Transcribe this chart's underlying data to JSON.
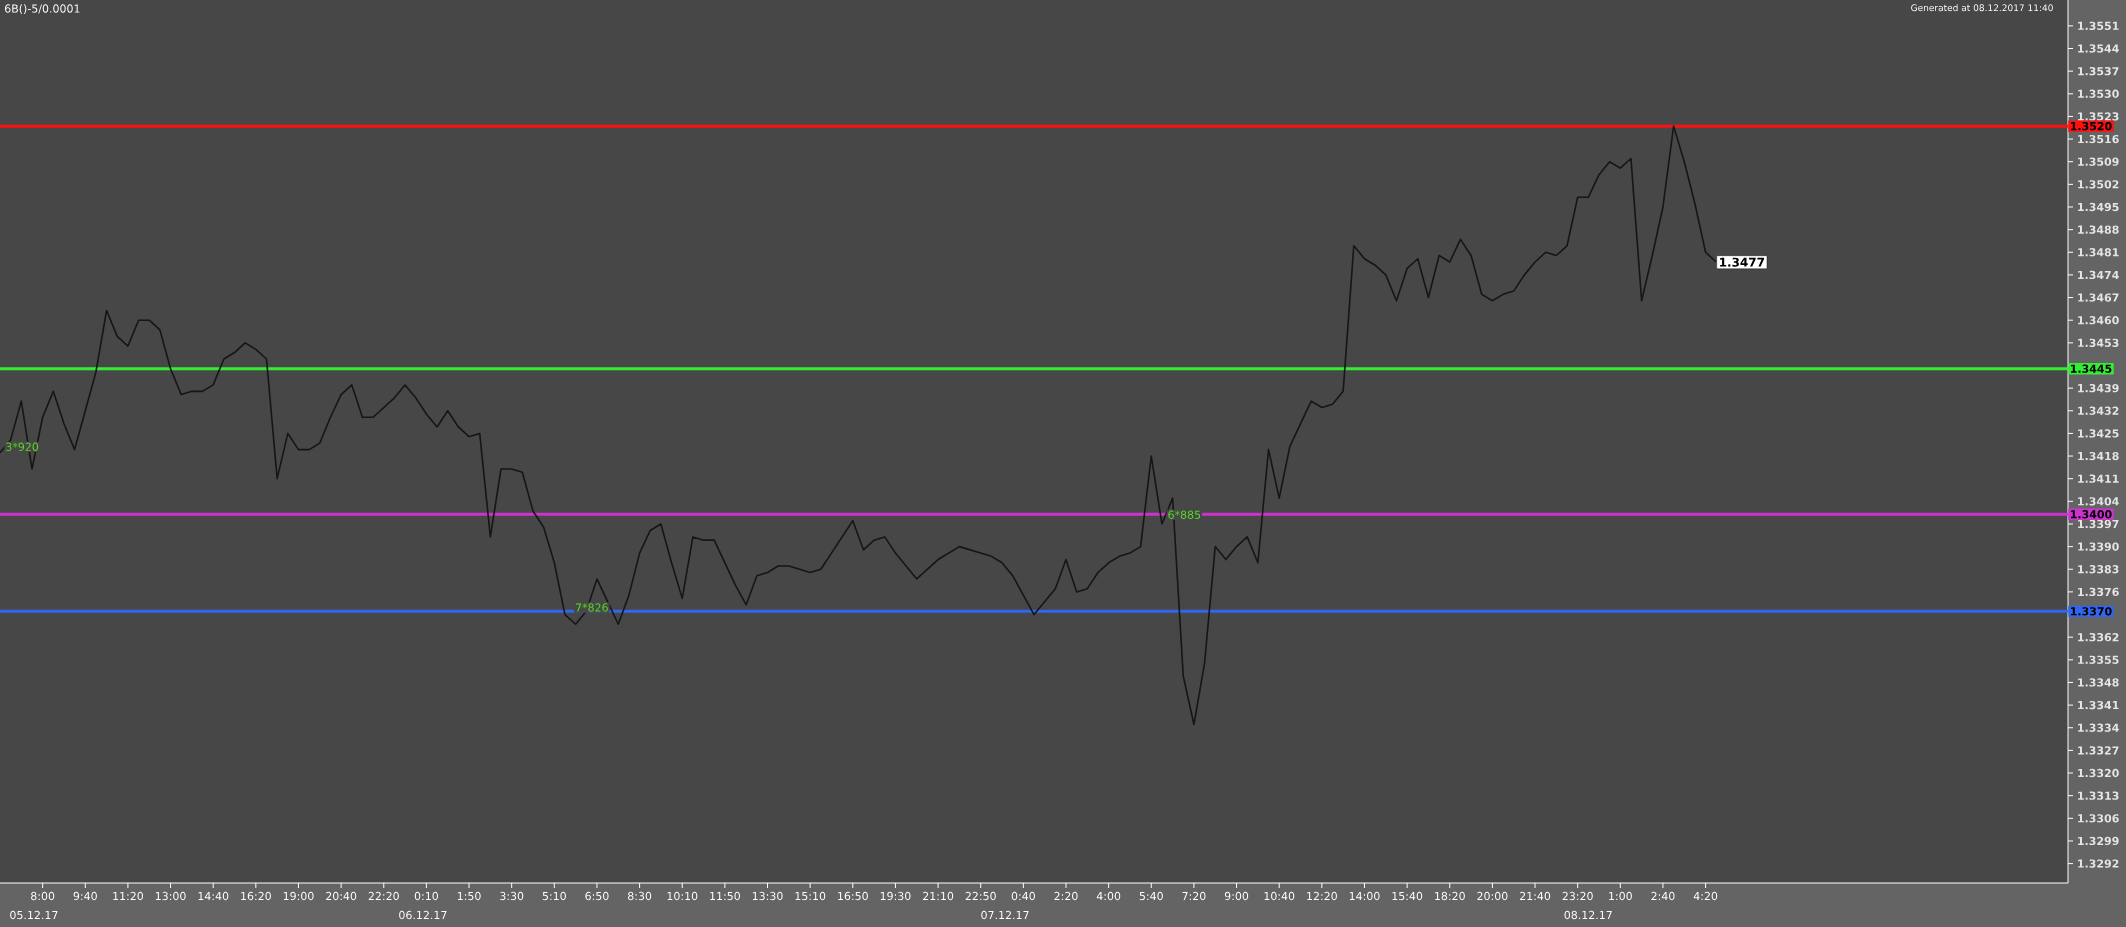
{
  "chart_data": {
    "type": "line",
    "title": "6B()-5/0.0001",
    "subtitle": "Generated at 08.12.2017 11:40",
    "categories": [
      null,
      null,
      null,
      null,
      "8:00",
      null,
      null,
      null,
      "9:40",
      null,
      null,
      null,
      "11:20",
      null,
      null,
      null,
      "13:00",
      null,
      null,
      null,
      "14:40",
      null,
      null,
      null,
      "16:20",
      null,
      null,
      null,
      "19:00",
      null,
      null,
      null,
      "20:40",
      null,
      null,
      null,
      "22:20",
      null,
      null,
      null,
      "0:10",
      null,
      null,
      null,
      "1:50",
      null,
      null,
      null,
      "3:30",
      null,
      null,
      null,
      "5:10",
      null,
      null,
      null,
      "6:50",
      null,
      null,
      null,
      "8:30",
      null,
      null,
      null,
      "10:10",
      null,
      null,
      null,
      "11:50",
      null,
      null,
      null,
      "13:30",
      null,
      null,
      null,
      "15:10",
      null,
      null,
      null,
      "16:50",
      null,
      null,
      null,
      "19:30",
      null,
      null,
      null,
      "21:10",
      null,
      null,
      null,
      "22:50",
      null,
      null,
      null,
      "0:40",
      null,
      null,
      null,
      "2:20",
      null,
      null,
      null,
      "4:00",
      null,
      null,
      null,
      "5:40",
      null,
      null,
      null,
      "7:20",
      null,
      null,
      null,
      "9:00",
      null,
      null,
      null,
      "10:40",
      null,
      null,
      null,
      "12:20",
      null,
      null,
      null,
      "14:00",
      null,
      null,
      null,
      "15:40",
      null,
      null,
      null,
      "18:20",
      null,
      null,
      null,
      "20:00",
      null,
      null,
      null,
      "21:40",
      null,
      null,
      null,
      "23:20",
      null,
      null,
      null,
      "1:00",
      null,
      null,
      null,
      "2:40",
      null,
      null,
      null,
      "4:20",
      null,
      null,
      null,
      null,
      null,
      null,
      null,
      null,
      null,
      null,
      null,
      null,
      null,
      null,
      null,
      null,
      null,
      null,
      null,
      null,
      null,
      null,
      null,
      null,
      null,
      null,
      null,
      null,
      null,
      null,
      null,
      null,
      null,
      null
    ],
    "series": [
      {
        "color": "#161616",
        "values": [
          1.3419,
          1.3423,
          1.3435,
          1.3414,
          1.343,
          1.3438,
          1.3428,
          1.342,
          1.3432,
          1.3444,
          1.3463,
          1.3455,
          1.3452,
          1.346,
          1.346,
          1.3457,
          1.3445,
          1.3437,
          1.3438,
          1.3438,
          1.344,
          1.3448,
          1.345,
          1.3453,
          1.3451,
          1.3448,
          1.3411,
          1.3425,
          1.342,
          1.342,
          1.3422,
          1.343,
          1.3437,
          1.344,
          1.343,
          1.343,
          1.3433,
          1.3436,
          1.344,
          1.3436,
          1.3431,
          1.3427,
          1.3432,
          1.3427,
          1.3424,
          1.3425,
          1.3393,
          1.3414,
          1.3414,
          1.3413,
          1.3401,
          1.3396,
          1.3385,
          1.3369,
          1.3366,
          1.337,
          1.338,
          1.3373,
          1.3366,
          1.3375,
          1.3388,
          1.3395,
          1.3397,
          1.3385,
          1.3374,
          1.3393,
          1.3392,
          1.3392,
          1.3385,
          1.3378,
          1.3372,
          1.3381,
          1.3382,
          1.3384,
          1.3384,
          1.3383,
          1.3382,
          1.3383,
          1.3388,
          1.3393,
          1.3398,
          1.3389,
          1.3392,
          1.3393,
          1.3388,
          1.3384,
          1.338,
          1.3383,
          1.3386,
          1.3388,
          1.339,
          1.3389,
          1.3388,
          1.3387,
          1.3385,
          1.3381,
          1.3375,
          1.3369,
          1.3373,
          1.3377,
          1.3386,
          1.3376,
          1.3377,
          1.3382,
          1.3385,
          1.3387,
          1.3388,
          1.339,
          1.3418,
          1.3397,
          1.3405,
          1.335,
          1.3335,
          1.3354,
          1.339,
          1.3386,
          1.339,
          1.3393,
          1.3385,
          1.342,
          1.3405,
          1.3421,
          1.3428,
          1.3435,
          1.3433,
          1.3434,
          1.3438,
          1.3483,
          1.3479,
          1.3477,
          1.3474,
          1.3466,
          1.3476,
          1.3479,
          1.3467,
          1.348,
          1.3478,
          1.3485,
          1.348,
          1.3468,
          1.3466,
          1.3468,
          1.3469,
          1.3474,
          1.3478,
          1.3481,
          1.348,
          1.3483,
          1.3498,
          1.3498,
          1.3505,
          1.3509,
          1.3507,
          1.351,
          1.3466,
          1.348,
          1.3495,
          1.352,
          1.3509,
          1.3496,
          1.3481,
          1.3478,
          null,
          null,
          null,
          null,
          null,
          null,
          null,
          null,
          null,
          null,
          null,
          null,
          null,
          null,
          null,
          null,
          null,
          null,
          null,
          null,
          null,
          null,
          null,
          null,
          null,
          null,
          null,
          null,
          null,
          null,
          null,
          null,
          null
        ]
      }
    ],
    "ylim": [
      1.3286,
      1.3559
    ],
    "yticks": [
      1.3292,
      1.3299,
      1.3306,
      1.3313,
      {
        "value": 1.332,
        "label": "1.3320"
      },
      1.3327,
      1.3334,
      1.3341,
      1.3348,
      1.3355,
      1.3362,
      {
        "value": 1.3369,
        "label": null
      },
      1.3376,
      1.3383,
      {
        "value": 1.339,
        "label": "1.3390"
      },
      1.3397,
      1.3404,
      1.3411,
      1.3418,
      1.3425,
      1.3432,
      1.3439,
      {
        "value": 1.3446,
        "label": null
      },
      1.3453,
      {
        "value": 1.346,
        "label": "1.3460"
      },
      1.3467,
      1.3474,
      1.3481,
      1.3488,
      1.3495,
      1.3502,
      1.3509,
      1.3516,
      1.3523,
      {
        "value": 1.353,
        "label": "1.3530"
      },
      1.3537,
      1.3544,
      1.3551
    ],
    "ref_lines": [
      {
        "axis": "y",
        "value": 1.352,
        "label": "1.3520",
        "color": "#ff1010"
      },
      {
        "axis": "y",
        "value": 1.3445,
        "label": "1.3445",
        "color": "#33ee33"
      },
      {
        "axis": "y",
        "value": 1.34,
        "label": "1.3400",
        "color": "#cc33cc"
      },
      {
        "axis": "y",
        "value": 1.337,
        "label": "1.3370",
        "color": "#3366ee"
      }
    ],
    "annotations": [
      "3*920",
      "7*826",
      "6*885",
      "1.3477",
      "05.12.17",
      "06.12.17",
      "07.12.17",
      "08.12.17"
    ]
  }
}
